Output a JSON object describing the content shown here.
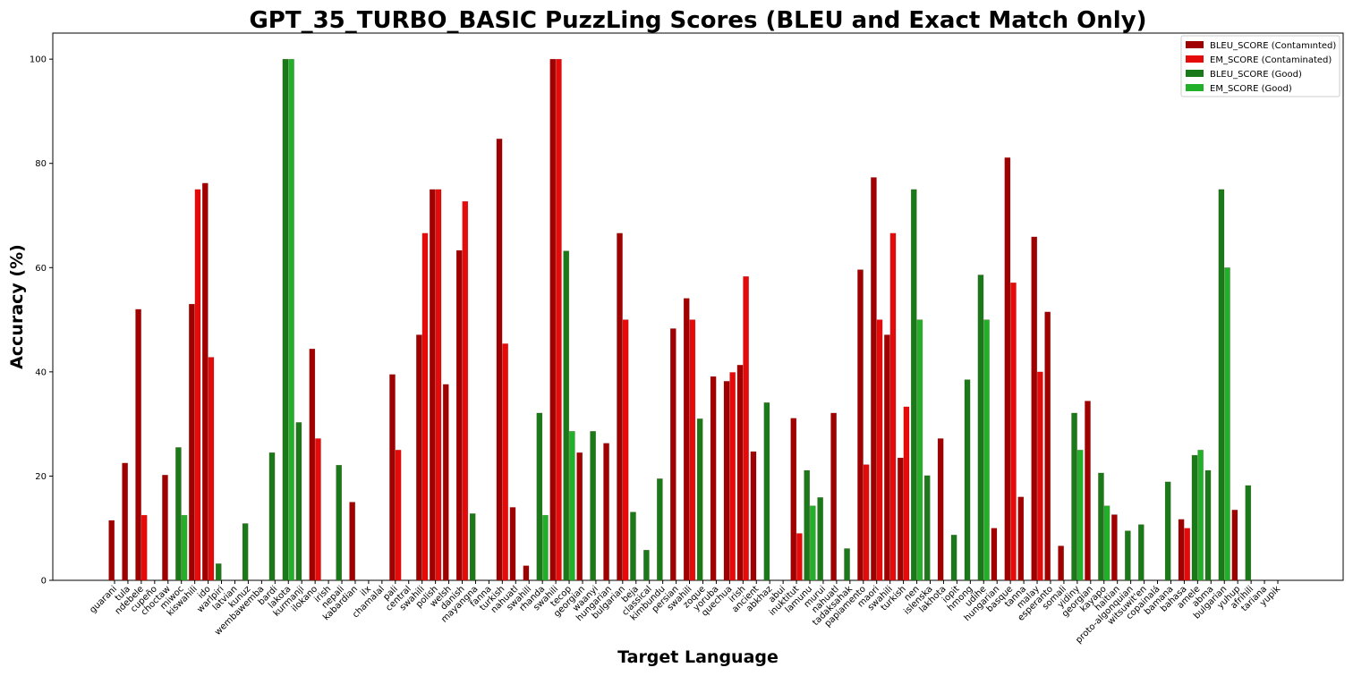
{
  "chart_data": {
    "type": "bar",
    "title": "GPT_35_TURBO_BASIC PuzzLing Scores (BLEU and Exact Match Only)",
    "xlabel": "Target Language",
    "ylabel": "Accuracy (%)",
    "ylim": [
      0,
      105
    ],
    "yticks": [
      0,
      20,
      40,
      60,
      80,
      100
    ],
    "grid": false,
    "legend_position": "top-right",
    "series": [
      {
        "name": "BLEU_SCORE (Contamınted)",
        "color": "#a00000"
      },
      {
        "name": "EM_SCORE (Contaminated)",
        "color": "#e60b0b"
      },
      {
        "name": "BLEU_SCORE (Good)",
        "color": "#1a7a1a"
      },
      {
        "name": "EM_SCORE (Good)",
        "color": "#22b02a"
      }
    ],
    "categories": [
      {
        "label": "guarani",
        "group": "contaminated",
        "bleu": 11.5,
        "em": 0
      },
      {
        "label": "tula",
        "group": "contaminated",
        "bleu": 22.5,
        "em": 0
      },
      {
        "label": "ndebele",
        "group": "contaminated",
        "bleu": 52,
        "em": 12.5
      },
      {
        "label": "cupeño",
        "group": "contaminated",
        "bleu": 0,
        "em": 0
      },
      {
        "label": "choctaw",
        "group": "contaminated",
        "bleu": 20.2,
        "em": 0
      },
      {
        "label": "miwoc",
        "group": "good",
        "bleu": 25.5,
        "em": 12.5
      },
      {
        "label": "kiswahili",
        "group": "contaminated",
        "bleu": 53,
        "em": 75
      },
      {
        "label": "ido",
        "group": "contaminated",
        "bleu": 76.2,
        "em": 42.8
      },
      {
        "label": "warlpiri",
        "group": "good",
        "bleu": 3.2,
        "em": 0
      },
      {
        "label": "latvian",
        "group": "good",
        "bleu": 0,
        "em": 0
      },
      {
        "label": "kunuz",
        "group": "good",
        "bleu": 10.9,
        "em": 0
      },
      {
        "label": "wembawemba",
        "group": "good",
        "bleu": 0,
        "em": 0
      },
      {
        "label": "bardi",
        "group": "good",
        "bleu": 24.5,
        "em": 0
      },
      {
        "label": "lakota",
        "group": "good",
        "bleu": 100,
        "em": 100
      },
      {
        "label": "kurmanji",
        "group": "good",
        "bleu": 30.3,
        "em": 0
      },
      {
        "label": "ilokano",
        "group": "contaminated",
        "bleu": 44.4,
        "em": 27.2
      },
      {
        "label": "irish",
        "group": "contaminated",
        "bleu": 0,
        "em": 0
      },
      {
        "label": "nepali",
        "group": "good",
        "bleu": 22.1,
        "em": 0
      },
      {
        "label": "kabardian",
        "group": "contaminated",
        "bleu": 15,
        "em": 0
      },
      {
        "label": "ilx",
        "group": "contaminated",
        "bleu": 0,
        "em": 0
      },
      {
        "label": "chamalal",
        "group": "contaminated",
        "bleu": 0,
        "em": 0
      },
      {
        "label": "pali",
        "group": "contaminated",
        "bleu": 39.5,
        "em": 25
      },
      {
        "label": "central",
        "group": "contaminated",
        "bleu": 0,
        "em": 0
      },
      {
        "label": "swahili",
        "group": "contaminated",
        "bleu": 47.1,
        "em": 66.6
      },
      {
        "label": "polish",
        "group": "contaminated",
        "bleu": 75,
        "em": 75
      },
      {
        "label": "welsh",
        "group": "contaminated",
        "bleu": 37.6,
        "em": 0
      },
      {
        "label": "danish",
        "group": "contaminated",
        "bleu": 63.3,
        "em": 72.7
      },
      {
        "label": "mayangna",
        "group": "good",
        "bleu": 12.8,
        "em": 0
      },
      {
        "label": "fanna",
        "group": "contaminated",
        "bleu": 0,
        "em": 0
      },
      {
        "label": "turkish",
        "group": "contaminated",
        "bleu": 84.7,
        "em": 45.4
      },
      {
        "label": "nahuatl",
        "group": "contaminated",
        "bleu": 14,
        "em": 0
      },
      {
        "label": "swahili",
        "group": "contaminated",
        "bleu": 2.8,
        "em": 0
      },
      {
        "label": "rhanda",
        "group": "good",
        "bleu": 32.1,
        "em": 12.5
      },
      {
        "label": "swahili",
        "group": "contaminated",
        "bleu": 100,
        "em": 100
      },
      {
        "label": "tecop",
        "group": "good",
        "bleu": 63.2,
        "em": 28.6
      },
      {
        "label": "georgian",
        "group": "contaminated",
        "bleu": 24.5,
        "em": 0
      },
      {
        "label": "waanyi",
        "group": "good",
        "bleu": 28.6,
        "em": 0
      },
      {
        "label": "hungarian",
        "group": "contaminated",
        "bleu": 26.3,
        "em": 0
      },
      {
        "label": "bulgarian",
        "group": "contaminated",
        "bleu": 66.6,
        "em": 50
      },
      {
        "label": "beja",
        "group": "good",
        "bleu": 13.1,
        "em": 0
      },
      {
        "label": "classical",
        "group": "good",
        "bleu": 5.8,
        "em": 0
      },
      {
        "label": "kimbundu",
        "group": "good",
        "bleu": 19.5,
        "em": 0
      },
      {
        "label": "persian",
        "group": "contaminated",
        "bleu": 48.3,
        "em": 0
      },
      {
        "label": "swahili",
        "group": "contaminated",
        "bleu": 54.1,
        "em": 50
      },
      {
        "label": "zoque",
        "group": "good",
        "bleu": 31,
        "em": 0
      },
      {
        "label": "yoruba",
        "group": "contaminated",
        "bleu": 39.1,
        "em": 0
      },
      {
        "label": "quechua",
        "group": "contaminated",
        "bleu": 38.2,
        "em": 39.9
      },
      {
        "label": "irish",
        "group": "contaminated",
        "bleu": 41.3,
        "em": 58.3
      },
      {
        "label": "ancient",
        "group": "contaminated",
        "bleu": 24.7,
        "em": 0
      },
      {
        "label": "abkhaz",
        "group": "good",
        "bleu": 34.1,
        "em": 0
      },
      {
        "label": "abui",
        "group": "good",
        "bleu": 0,
        "em": 0
      },
      {
        "label": "inuktitut",
        "group": "contaminated",
        "bleu": 31.1,
        "em": 9
      },
      {
        "label": "lamunu",
        "group": "good",
        "bleu": 21.1,
        "em": 14.3
      },
      {
        "label": "murui",
        "group": "good",
        "bleu": 15.9,
        "em": 0
      },
      {
        "label": "nahuatl",
        "group": "contaminated",
        "bleu": 32.1,
        "em": 0
      },
      {
        "label": "tadaksahak",
        "group": "good",
        "bleu": 6.1,
        "em": 0
      },
      {
        "label": "papiamento",
        "group": "contaminated",
        "bleu": 59.6,
        "em": 22.2
      },
      {
        "label": "maori",
        "group": "contaminated",
        "bleu": 77.3,
        "em": 50
      },
      {
        "label": "swahili",
        "group": "contaminated",
        "bleu": 47.1,
        "em": 66.6
      },
      {
        "label": "turkish",
        "group": "contaminated",
        "bleu": 23.5,
        "em": 33.3
      },
      {
        "label": "nen",
        "group": "good",
        "bleu": 75,
        "em": 50
      },
      {
        "label": "islenska",
        "group": "good",
        "bleu": 20.1,
        "em": 0
      },
      {
        "label": "lakhota",
        "group": "contaminated",
        "bleu": 27.2,
        "em": 0
      },
      {
        "label": "iopit",
        "group": "good",
        "bleu": 8.7,
        "em": 0
      },
      {
        "label": "hmong",
        "group": "good",
        "bleu": 38.5,
        "em": 0
      },
      {
        "label": "udihe",
        "group": "good",
        "bleu": 58.6,
        "em": 50
      },
      {
        "label": "hungarian",
        "group": "contaminated",
        "bleu": 10,
        "em": 0
      },
      {
        "label": "basque",
        "group": "contaminated",
        "bleu": 81.1,
        "em": 57.1
      },
      {
        "label": "tanna",
        "group": "contaminated",
        "bleu": 16,
        "em": 0
      },
      {
        "label": "malay",
        "group": "contaminated",
        "bleu": 65.9,
        "em": 40
      },
      {
        "label": "esperanto",
        "group": "contaminated",
        "bleu": 51.5,
        "em": 0
      },
      {
        "label": "somali",
        "group": "contaminated",
        "bleu": 6.6,
        "em": 0
      },
      {
        "label": "yidiny",
        "group": "good",
        "bleu": 32.1,
        "em": 25
      },
      {
        "label": "georgian",
        "group": "contaminated",
        "bleu": 34.4,
        "em": 0
      },
      {
        "label": "kayapo",
        "group": "good",
        "bleu": 20.6,
        "em": 14.3
      },
      {
        "label": "haitian",
        "group": "contaminated",
        "bleu": 12.6,
        "em": 0
      },
      {
        "label": "proto-algonquian",
        "group": "good",
        "bleu": 9.5,
        "em": 0
      },
      {
        "label": "witsuwit'en",
        "group": "good",
        "bleu": 10.7,
        "em": 0
      },
      {
        "label": "copainalá",
        "group": "good",
        "bleu": 0,
        "em": 0
      },
      {
        "label": "bamana",
        "group": "good",
        "bleu": 18.9,
        "em": 0
      },
      {
        "label": "bahasa",
        "group": "contaminated",
        "bleu": 11.7,
        "em": 10
      },
      {
        "label": "amele",
        "group": "good",
        "bleu": 24,
        "em": 25
      },
      {
        "label": "abma",
        "group": "good",
        "bleu": 21.1,
        "em": 0
      },
      {
        "label": "bulgarian",
        "group": "good",
        "bleu": 75,
        "em": 60
      },
      {
        "label": "yuhup",
        "group": "contaminated",
        "bleu": 13.5,
        "em": 0
      },
      {
        "label": "afrihili",
        "group": "good",
        "bleu": 18.2,
        "em": 0
      },
      {
        "label": "tariana",
        "group": "good",
        "bleu": 0,
        "em": 0
      },
      {
        "label": "yupik",
        "group": "good",
        "bleu": 0,
        "em": 0
      }
    ]
  }
}
